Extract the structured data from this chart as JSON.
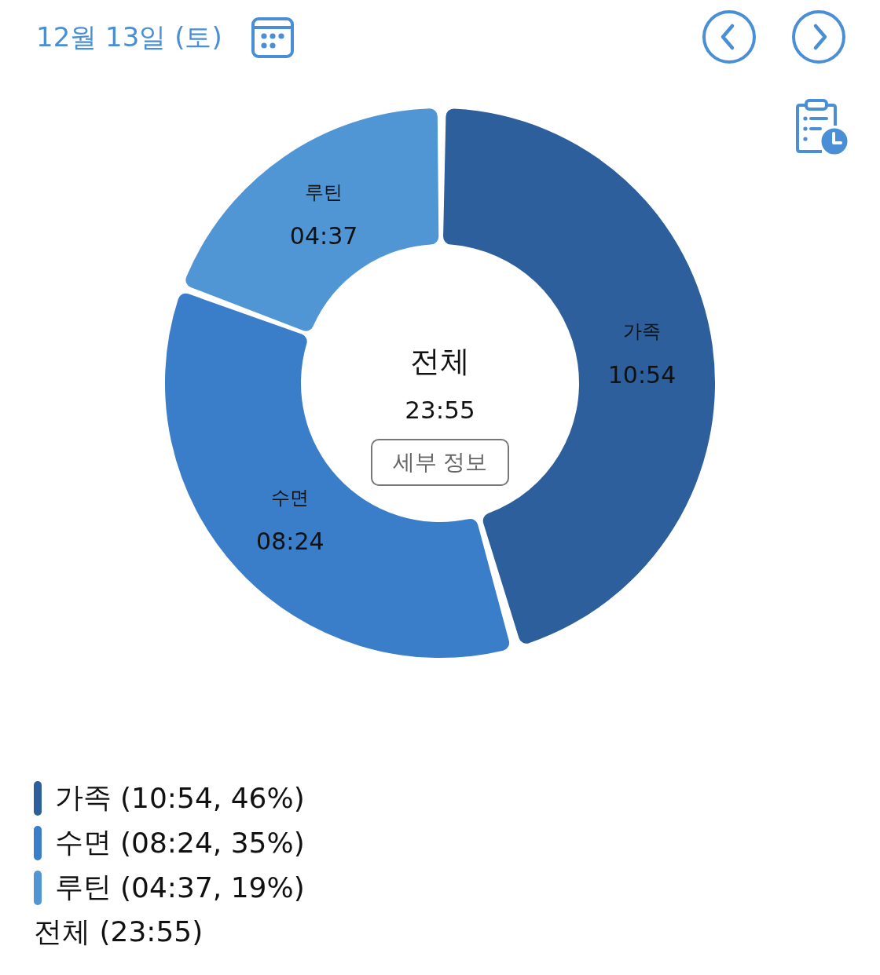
{
  "chart_data": {
    "type": "donut",
    "title": "12월 13일 (토)",
    "categories": [
      "가족",
      "수면",
      "루틴"
    ],
    "values": [
      10.9,
      8.4,
      4.617
    ],
    "colors": [
      "#2c5f9c",
      "#3a7ec9",
      "#5096d5"
    ],
    "value_labels": [
      "10:54",
      "08:24",
      "04:37"
    ],
    "legend": "bottom left",
    "annotations": [
      "전체",
      "23:55",
      "세부 정보",
      "(10:54, 46%)",
      "(08:24, 35%)",
      "(04:37, 19%)",
      "전체 (23:55)"
    ]
  }
}
